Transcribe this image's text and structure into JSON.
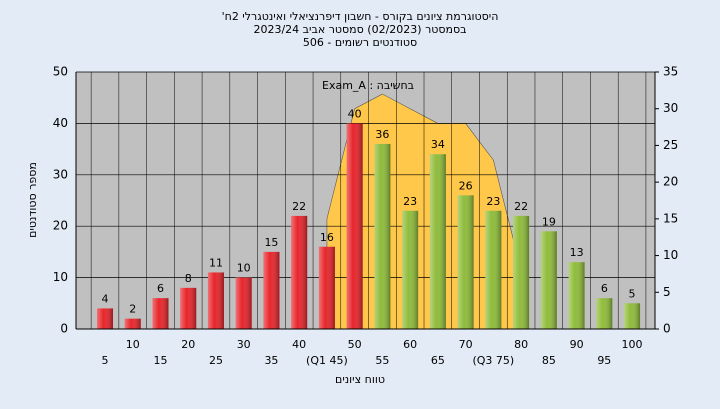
{
  "chart_data": {
    "type": "bar",
    "title": "היסטוגרמת ציונים בקורס - חשבון דיפרנציאלי ואינטגרלי 2ח'",
    "subtitle": "בסמסטר  (02/2023)  סמסטר אביב 2023/24",
    "subtitle2": "סטודנטים רשומים - 506",
    "annotation": "בחשיבה : Exam_A",
    "ylabel": "מספר סטודנטים",
    "xlabel": "טווח ציונים",
    "categories": [
      "5",
      "10",
      "15",
      "20",
      "25",
      "30",
      "35",
      "40",
      "(Q1 45)",
      "50",
      "55",
      "60",
      "65",
      "70",
      "(Q3 75)",
      "80",
      "85",
      "90",
      "95",
      "100"
    ],
    "values": [
      4,
      2,
      6,
      8,
      11,
      10,
      15,
      22,
      16,
      40,
      36,
      23,
      34,
      26,
      23,
      22,
      19,
      13,
      6,
      5
    ],
    "colors": [
      "#e8252b",
      "#e8252b",
      "#e8252b",
      "#e8252b",
      "#e8252b",
      "#e8252b",
      "#e8252b",
      "#e8252b",
      "#e8252b",
      "#e8252b",
      "#8fbc3a",
      "#8fbc3a",
      "#8fbc3a",
      "#8fbc3a",
      "#8fbc3a",
      "#8fbc3a",
      "#8fbc3a",
      "#8fbc3a",
      "#8fbc3a",
      "#8fbc3a"
    ],
    "area": {
      "color": "#ffc84a",
      "axis": "y2",
      "values": [
        null,
        null,
        null,
        null,
        null,
        null,
        null,
        null,
        15,
        30,
        32,
        30,
        28,
        28,
        23,
        8,
        null,
        null,
        null,
        null
      ]
    },
    "ylim": [
      0,
      50
    ],
    "yticks": [
      0,
      10,
      20,
      30,
      40,
      50
    ],
    "y2lim": [
      0,
      35
    ],
    "y2ticks": [
      0,
      5,
      10,
      15,
      20,
      25,
      30,
      35
    ],
    "grid": true
  }
}
